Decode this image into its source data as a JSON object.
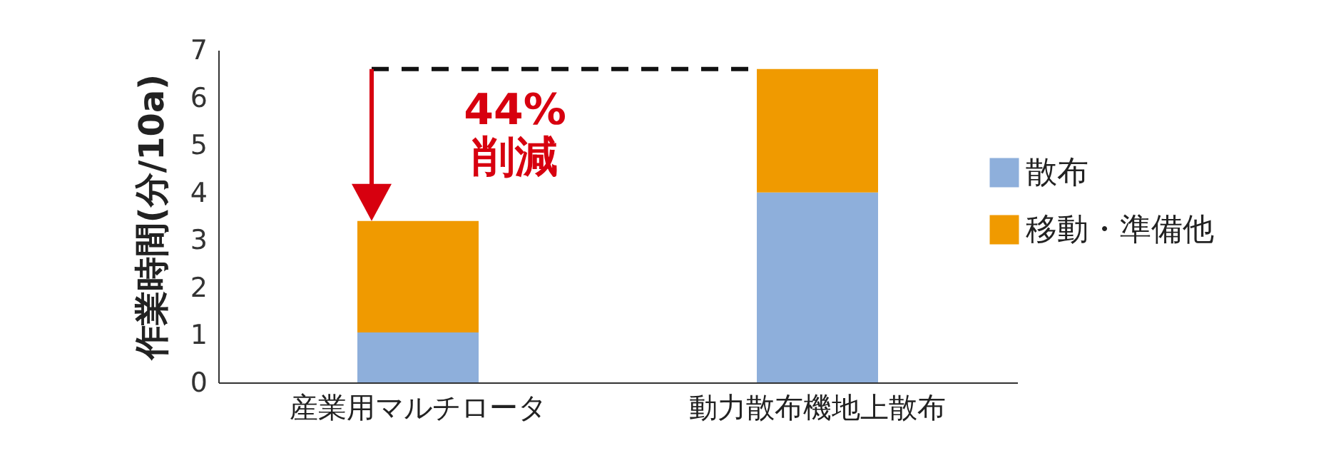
{
  "chart_data": {
    "type": "bar",
    "ylabel": "作業時間(分/10a)",
    "categories": [
      "産業用マルチロータ",
      "動力散布機地上散布"
    ],
    "stacked": true,
    "series": [
      {
        "name": "散布",
        "color": "#8eafdb",
        "values": [
          1.05,
          4.0
        ]
      },
      {
        "name": "移動・準備他",
        "color": "#f09a00",
        "values": [
          2.35,
          2.6
        ]
      }
    ],
    "ylim": [
      0,
      7
    ],
    "yticks": [
      0,
      1,
      2,
      3,
      4,
      5,
      6,
      7
    ],
    "ref_lines": [
      {
        "axis": "y",
        "value": 6.6,
        "color": "#111111",
        "line_style": "dashed"
      }
    ],
    "grid": false,
    "legend": "right",
    "annotations": [
      "44%\n削減"
    ]
  }
}
